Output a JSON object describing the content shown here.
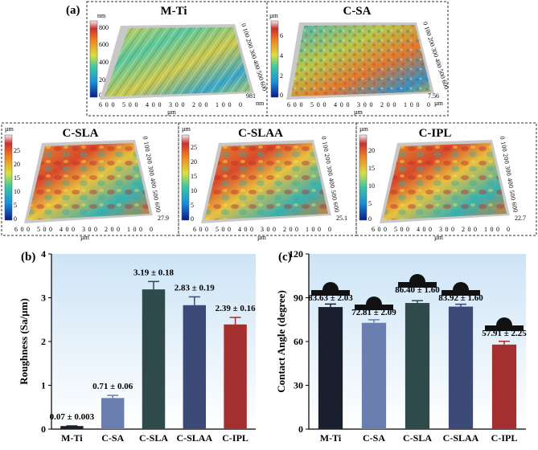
{
  "panel_a": {
    "label": "(a)",
    "unit_label": "µm",
    "x_ticks_label": "600 500 400 300 200 100 0",
    "y_ticks_label": "0 100 200 300 400 500 600",
    "maps": [
      {
        "title": "M-Ti",
        "unit": "nm",
        "scale": [
          "800",
          "600",
          "400",
          "200",
          "0"
        ],
        "max_value": "981"
      },
      {
        "title": "C-SA",
        "unit": "µm",
        "scale": [
          "6",
          "4",
          "2",
          "0"
        ],
        "max_value": "7.56"
      },
      {
        "title": "C-SLA",
        "unit": "µm",
        "scale": [
          "25",
          "20",
          "15",
          "10",
          "5",
          "0"
        ],
        "max_value": "27.9"
      },
      {
        "title": "C-SLAA",
        "unit": "µm",
        "scale": [
          "25",
          "20",
          "15",
          "10",
          "5",
          "0"
        ],
        "max_value": "25.1"
      },
      {
        "title": "C-IPL",
        "unit": "µm",
        "scale": [
          "20",
          "15",
          "10",
          "5",
          "0"
        ],
        "max_value": "22.7"
      }
    ]
  },
  "chart_data": [
    {
      "type": "bar",
      "panel": "(b)",
      "categories": [
        "M-Ti",
        "C-SA",
        "C-SLA",
        "C-SLAA",
        "C-IPL"
      ],
      "values": [
        0.07,
        0.71,
        3.19,
        2.83,
        2.39
      ],
      "errors": [
        0.003,
        0.06,
        0.18,
        0.19,
        0.16
      ],
      "labels": [
        "0.07 ± 0.003",
        "0.71 ± 0.06",
        "3.19 ± 0.18",
        "2.83 ± 0.19",
        "2.39 ± 0.16"
      ],
      "colors": [
        "#1a1f2e",
        "#6a7fb0",
        "#2e4a4a",
        "#3c4a78",
        "#a3302f"
      ],
      "ylabel": "Roughness (Sa/µm)",
      "xlabel": "",
      "ylim": [
        0,
        4
      ],
      "yticks": [
        0,
        1,
        2,
        3,
        4
      ]
    },
    {
      "type": "bar",
      "panel": "(c)",
      "categories": [
        "M-Ti",
        "C-SA",
        "C-SLA",
        "C-SLAA",
        "C-IPL"
      ],
      "values": [
        83.63,
        72.81,
        86.4,
        83.92,
        57.91
      ],
      "errors": [
        2.03,
        2.09,
        1.6,
        1.6,
        2.25
      ],
      "labels": [
        "83.63 ± 2.03",
        "72.81 ± 2.09",
        "86.40 ± 1.60",
        "83.92 ± 1.60",
        "57.91 ± 2.25"
      ],
      "colors": [
        "#1a1f2e",
        "#6a7fb0",
        "#2e4a4a",
        "#3c4a78",
        "#a3302f"
      ],
      "ylabel": "Contact Angle (degree)",
      "xlabel": "",
      "ylim": [
        0,
        120
      ],
      "yticks": [
        0,
        30,
        60,
        90,
        120
      ]
    }
  ]
}
